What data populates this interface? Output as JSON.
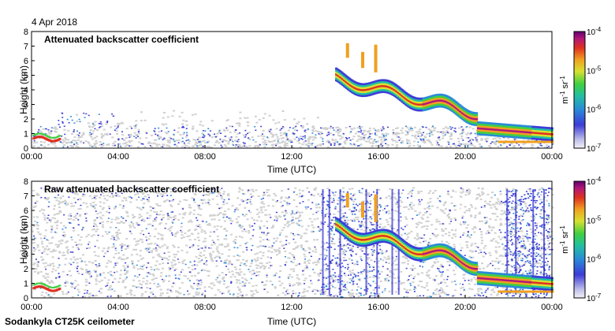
{
  "header": {
    "date": "4 Apr 2018"
  },
  "footer": {
    "instrument": "Sodankyla CT25K ceilometer"
  },
  "colormap": [
    "#1a1a1a",
    "#2a1f6b",
    "#2c5fd1",
    "#2c9be0",
    "#21c05a",
    "#a9e234",
    "#f6e53a",
    "#f39a22",
    "#e63a1a",
    "#c21a6a",
    "#7a0f80"
  ],
  "noise_color": "#d0d0d0",
  "chart_data": [
    {
      "type": "heatmap",
      "title": "Attenuated backscatter coefficient",
      "xlabel": "Time (UTC)",
      "ylabel": "Height (km)",
      "xlim": [
        0,
        24
      ],
      "ylim": [
        0,
        8
      ],
      "x_ticks": [
        "00:00",
        "04:00",
        "08:00",
        "12:00",
        "16:00",
        "20:00",
        "00:00"
      ],
      "y_ticks": [
        "0",
        "1",
        "2",
        "3",
        "4",
        "5",
        "6",
        "7",
        "8"
      ],
      "colorbar": {
        "label": "m-1 sr-1",
        "ticks": [
          "10-7",
          "10-6",
          "10-5",
          "10-4"
        ],
        "range_exp": [
          -7,
          -4
        ]
      }
    },
    {
      "type": "heatmap",
      "title": "Raw attenuated backscatter coefficient",
      "xlabel": "Time (UTC)",
      "ylabel": "Height (km)",
      "xlim": [
        0,
        24
      ],
      "ylim": [
        0,
        8
      ],
      "x_ticks": [
        "00:00",
        "04:00",
        "08:00",
        "12:00",
        "16:00",
        "20:00",
        "00:00"
      ],
      "y_ticks": [
        "0",
        "1",
        "2",
        "3",
        "4",
        "5",
        "6",
        "7",
        "8"
      ],
      "colorbar": {
        "label": "m-1 sr-1",
        "ticks": [
          "10-7",
          "10-6",
          "10-5",
          "10-4"
        ],
        "range_exp": [
          -7,
          -4
        ]
      }
    }
  ]
}
